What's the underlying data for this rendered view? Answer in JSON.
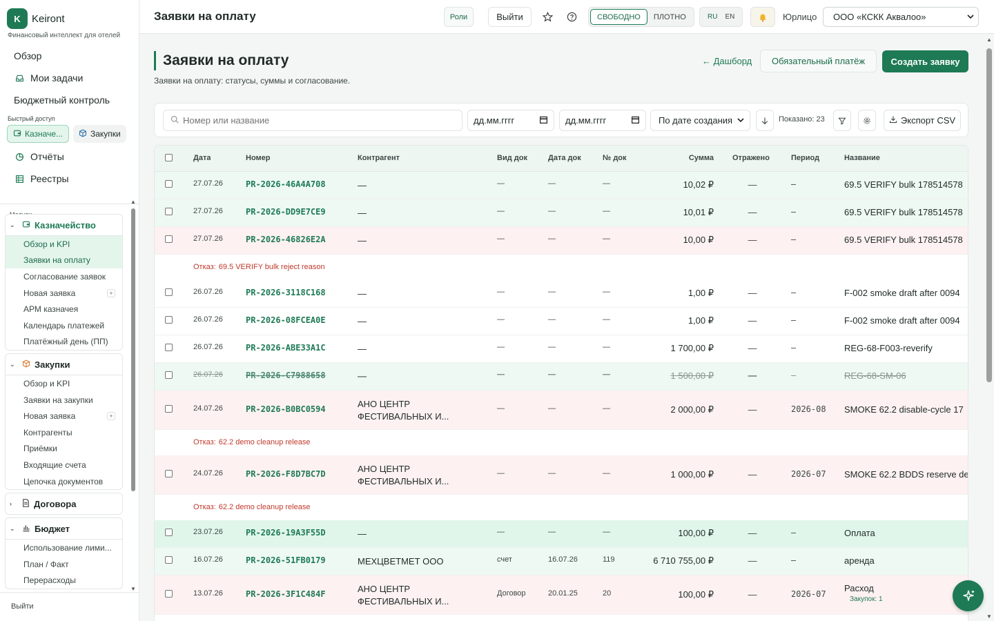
{
  "brand": {
    "logo_letter": "K",
    "name": "Keiront",
    "tagline": "Финансовый интеллект для отелей"
  },
  "sidebar": {
    "top_items": [
      {
        "label": "Обзор",
        "icon": ""
      },
      {
        "label": "Мои задачи",
        "icon": "inbox-icon"
      },
      {
        "label": "Бюджетный контроль",
        "icon": ""
      }
    ],
    "quick_access_title": "Быстрый доступ",
    "quick_access": [
      {
        "label": "Казначе...",
        "icon": "wallet-icon"
      },
      {
        "label": "Закупки",
        "icon": "box-icon"
      }
    ],
    "bottom_items": [
      {
        "label": "Отчёты",
        "icon": "pie-chart-icon"
      },
      {
        "label": "Реестры",
        "icon": "grid-icon"
      }
    ],
    "modules_title": "Модули",
    "modules": [
      {
        "title": "Казначейство",
        "icon": "wallet-icon",
        "expanded": true,
        "items": [
          {
            "label": "Обзор и KPI"
          },
          {
            "label": "Заявки на оплату"
          },
          {
            "label": "Согласование заявок"
          },
          {
            "label": "Новая заявка",
            "plus": "+"
          },
          {
            "label": "АРМ казначея"
          },
          {
            "label": "Календарь платежей"
          },
          {
            "label": "Платёжный день (ПП)"
          }
        ]
      },
      {
        "title": "Закупки",
        "icon": "box-icon",
        "expanded": true,
        "items": [
          {
            "label": "Обзор и KPI"
          },
          {
            "label": "Заявки на закупки"
          },
          {
            "label": "Новая заявка",
            "plus": "+"
          },
          {
            "label": "Контрагенты"
          },
          {
            "label": "Приёмки"
          },
          {
            "label": "Входящие счета"
          },
          {
            "label": "Цепочка документов"
          }
        ]
      },
      {
        "title": "Договора",
        "icon": "document-icon",
        "expanded": false,
        "items": []
      },
      {
        "title": "Бюджет",
        "icon": "bar-chart-icon",
        "expanded": true,
        "items": [
          {
            "label": "Использование лими..."
          },
          {
            "label": "План / Факт"
          },
          {
            "label": "Перерасходы"
          }
        ]
      }
    ],
    "footer_logout": "Выйти"
  },
  "topbar": {
    "title": "Заявки на оплату",
    "roles": "Роли",
    "logout": "Выйти",
    "density": {
      "loose": "СВОБОДНО",
      "dense": "ПЛОТНО"
    },
    "lang": {
      "ru": "RU",
      "en": "EN"
    },
    "entity_label": "Юрлицо",
    "entity_value": "ООО «КСКК Аквалоо»"
  },
  "page": {
    "title": "Заявки на оплату",
    "subtitle": "Заявки на оплату: статусы, суммы и согласование.",
    "back_link": "← Дашборд",
    "mandatory_btn": "Обязательный платёж",
    "create_btn": "Создать заявку"
  },
  "filters": {
    "search_placeholder": "Номер или название",
    "date_from": "дд.мм.гггг",
    "date_to": "дд.мм.гггг",
    "sort": "По дате создания",
    "shown": "Показано: 23",
    "export": "Экспорт CSV"
  },
  "table": {
    "headers": {
      "date": "Дата",
      "number": "Номер",
      "counterparty": "Контрагент",
      "doc_type": "Вид док",
      "doc_date": "Дата док",
      "doc_no": "№ док",
      "amount": "Сумма",
      "reflected": "Отражено",
      "period": "Период",
      "name": "Название"
    },
    "reject_label": "Отказ:",
    "colors": {
      "green_row": "#eef9f3",
      "red_row": "#fdf1f1",
      "green_strong": "#e1f6ea",
      "reject_text": "#c0392b"
    },
    "rows": [
      {
        "kind": "row",
        "tint": "green",
        "date": "27.07.26",
        "number": "PR-2026-46A4A708",
        "counterparty": "—",
        "doc_type": "—",
        "doc_date": "—",
        "doc_no": "—",
        "amount": "10,02 ₽",
        "reflected": "—",
        "period": "—",
        "name": "69.5 VERIFY bulk 178514578"
      },
      {
        "kind": "row",
        "tint": "green",
        "date": "27.07.26",
        "number": "PR-2026-DD9E7CE9",
        "counterparty": "—",
        "doc_type": "—",
        "doc_date": "—",
        "doc_no": "—",
        "amount": "10,01 ₽",
        "reflected": "—",
        "period": "—",
        "name": "69.5 VERIFY bulk 178514578"
      },
      {
        "kind": "row",
        "tint": "red",
        "date": "27.07.26",
        "number": "PR-2026-46826E2A",
        "counterparty": "—",
        "doc_type": "—",
        "doc_date": "—",
        "doc_no": "—",
        "amount": "10,00 ₽",
        "reflected": "—",
        "period": "—",
        "name": "69.5 VERIFY bulk 178514578"
      },
      {
        "kind": "reason",
        "text": "69.5 VERIFY bulk reject reason"
      },
      {
        "kind": "row",
        "tint": "white",
        "date": "26.07.26",
        "number": "PR-2026-3118C168",
        "counterparty": "—",
        "doc_type": "—",
        "doc_date": "—",
        "doc_no": "—",
        "amount": "1,00 ₽",
        "reflected": "—",
        "period": "—",
        "name": "F-002 smoke draft after 0094"
      },
      {
        "kind": "row",
        "tint": "white",
        "date": "26.07.26",
        "number": "PR-2026-08FCEA0E",
        "counterparty": "—",
        "doc_type": "—",
        "doc_date": "—",
        "doc_no": "—",
        "amount": "1,00 ₽",
        "reflected": "—",
        "period": "—",
        "name": "F-002 smoke draft after 0094"
      },
      {
        "kind": "row",
        "tint": "white",
        "date": "26.07.26",
        "number": "PR-2026-ABE33A1C",
        "counterparty": "—",
        "doc_type": "—",
        "doc_date": "—",
        "doc_no": "—",
        "amount": "1 700,00 ₽",
        "reflected": "—",
        "period": "—",
        "name": "REG-68-F003-reverify"
      },
      {
        "kind": "row",
        "tint": "green",
        "strike": true,
        "date": "26.07.26",
        "number": "PR-2026-C7988658",
        "counterparty": "—",
        "doc_type": "—",
        "doc_date": "—",
        "doc_no": "—",
        "amount": "1 500,00 ₽",
        "reflected": "—",
        "period": "—",
        "name": "REG-68-SM-06"
      },
      {
        "kind": "row",
        "tint": "red",
        "tall": true,
        "date": "24.07.26",
        "number": "PR-2026-B0BC0594",
        "counterparty": "АНО ЦЕНТР ФЕСТИВАЛЬНЫХ И...",
        "doc_type": "—",
        "doc_date": "—",
        "doc_no": "—",
        "amount": "2 000,00 ₽",
        "reflected": "—",
        "period": "2026-08",
        "name": "SMOKE 62.2 disable-cycle 17"
      },
      {
        "kind": "reason",
        "text": "62.2 demo cleanup release"
      },
      {
        "kind": "row",
        "tint": "red",
        "tall": true,
        "date": "24.07.26",
        "number": "PR-2026-F8D7BC7D",
        "counterparty": "АНО ЦЕНТР ФЕСТИВАЛЬНЫХ И...",
        "doc_type": "—",
        "doc_date": "—",
        "doc_no": "—",
        "amount": "1 000,00 ₽",
        "reflected": "—",
        "period": "2026-07",
        "name": "SMOKE 62.2 BDDS reserve de"
      },
      {
        "kind": "reason",
        "text": "62.2 demo cleanup release"
      },
      {
        "kind": "row",
        "tint": "green_strong",
        "date": "23.07.26",
        "number": "PR-2026-19A3F55D",
        "counterparty": "—",
        "doc_type": "—",
        "doc_date": "—",
        "doc_no": "—",
        "amount": "100,00 ₽",
        "reflected": "—",
        "period": "—",
        "name": "Оплата"
      },
      {
        "kind": "row",
        "tint": "green",
        "date": "16.07.26",
        "number": "PR-2026-51FB0179",
        "counterparty": "МЕХЦВЕТМЕТ ООО",
        "doc_type": "счет",
        "doc_date": "16.07.26",
        "doc_no": "119",
        "amount": "6 710 755,00 ₽",
        "reflected": "—",
        "period": "—",
        "name": "аренда"
      },
      {
        "kind": "row",
        "tint": "red",
        "tall": true,
        "date": "13.07.26",
        "number": "PR-2026-3F1C484F",
        "counterparty": "АНО ЦЕНТР ФЕСТИВАЛЬНЫХ И...",
        "doc_type": "Договор",
        "doc_date": "20.01.25",
        "doc_no": "20",
        "amount": "100,00 ₽",
        "reflected": "—",
        "period": "2026-07",
        "name": "Расход",
        "name_sub": "Закупок: 1"
      }
    ]
  }
}
